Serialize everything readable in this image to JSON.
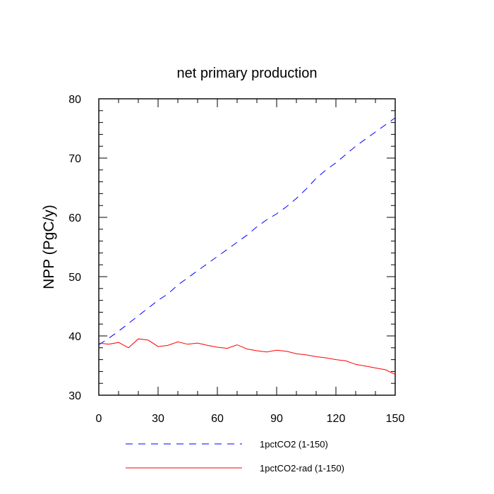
{
  "chart_data": {
    "type": "line",
    "title": "net primary production",
    "xlabel": "",
    "ylabel": "NPP  (PgC/y)",
    "xlim": [
      0,
      150
    ],
    "ylim": [
      30,
      80
    ],
    "x_ticks": [
      0,
      30,
      60,
      90,
      120,
      150
    ],
    "y_ticks": [
      30,
      40,
      50,
      60,
      70,
      80
    ],
    "grid": false,
    "legend_position": "bottom",
    "colors": {
      "series1": "#0000ff",
      "series2": "#ff0000",
      "axis": "#000000"
    },
    "series": [
      {
        "name": "1pctCO2 (1-150)",
        "line_style": "dashed",
        "color": "#0000ff",
        "x": [
          0,
          5,
          10,
          15,
          20,
          25,
          30,
          35,
          40,
          45,
          50,
          55,
          60,
          65,
          70,
          75,
          80,
          85,
          90,
          95,
          100,
          105,
          110,
          115,
          120,
          125,
          130,
          135,
          140,
          145,
          150
        ],
        "y": [
          38.5,
          39.6,
          40.8,
          42.1,
          43.4,
          44.7,
          46.0,
          47.1,
          48.6,
          49.8,
          51.0,
          52.2,
          53.4,
          54.6,
          55.8,
          57.0,
          58.4,
          59.6,
          60.6,
          61.8,
          63.2,
          64.8,
          66.6,
          68.0,
          69.2,
          70.6,
          72.0,
          73.2,
          74.4,
          75.6,
          76.8
        ]
      },
      {
        "name": "1pctCO2-rad (1-150)",
        "line_style": "solid",
        "color": "#ff0000",
        "x": [
          0,
          5,
          10,
          15,
          20,
          25,
          30,
          35,
          40,
          45,
          50,
          55,
          60,
          65,
          70,
          75,
          80,
          85,
          90,
          95,
          100,
          105,
          110,
          115,
          120,
          125,
          130,
          135,
          140,
          145,
          150
        ],
        "y": [
          38.8,
          38.6,
          38.9,
          38.0,
          39.5,
          39.3,
          38.2,
          38.4,
          39.0,
          38.6,
          38.8,
          38.4,
          38.1,
          37.9,
          38.5,
          37.8,
          37.5,
          37.3,
          37.6,
          37.4,
          37.0,
          36.8,
          36.5,
          36.3,
          36.0,
          35.8,
          35.2,
          34.9,
          34.6,
          34.3,
          33.5
        ]
      }
    ]
  }
}
